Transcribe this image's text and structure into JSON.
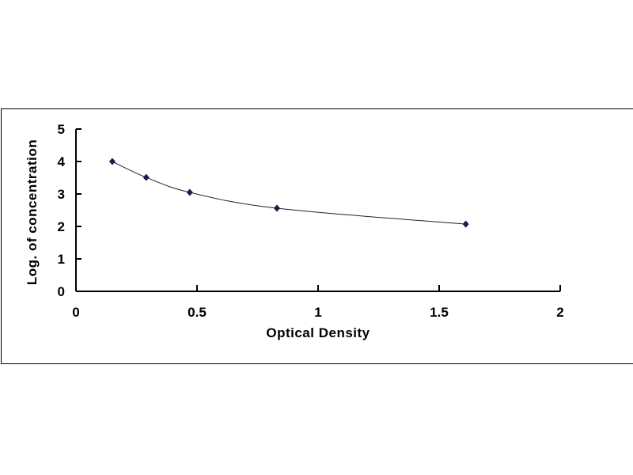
{
  "chart_data": {
    "type": "scatter",
    "title": "",
    "xlabel": "Optical Density",
    "ylabel": "Log. of concentration",
    "xlim": [
      0,
      2
    ],
    "ylim": [
      0,
      5
    ],
    "xticks": [
      "0",
      "0.5",
      "1",
      "1.5",
      "2"
    ],
    "yticks": [
      "0",
      "1",
      "2",
      "3",
      "4",
      "5"
    ],
    "grid": false,
    "smooth_line": true,
    "marker": "diamond",
    "color": "#1a1a4e",
    "x": [
      0.15,
      0.29,
      0.47,
      0.83,
      1.61
    ],
    "y": [
      4.0,
      3.51,
      3.05,
      2.56,
      2.07
    ]
  }
}
